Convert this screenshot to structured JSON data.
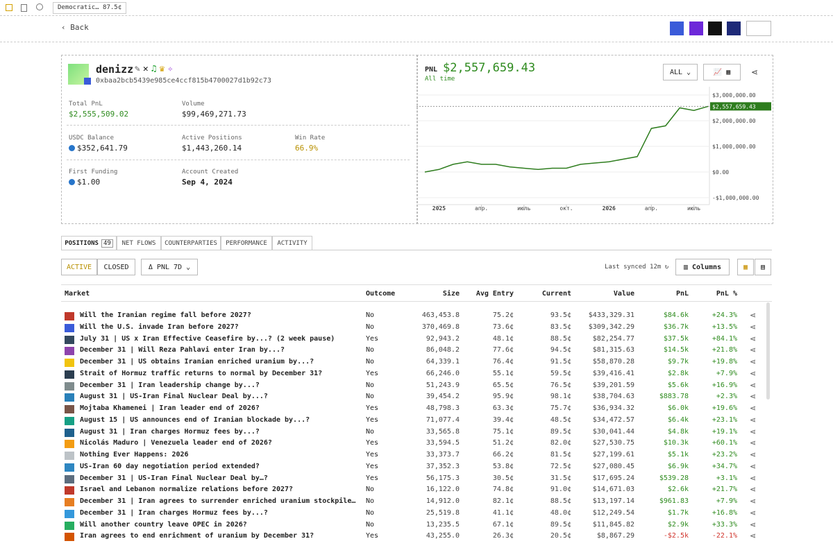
{
  "browser": {
    "tab": "Democratic… 87.5¢"
  },
  "nav": {
    "back": "Back"
  },
  "profile": {
    "name": "denizz",
    "address": "0xbaa2bcb5439e985ce4ccf815b4700027d1b92c73"
  },
  "stats": [
    {
      "label": "Total PnL",
      "value": "$2,555,509.02"
    },
    {
      "label": "Volume",
      "value": "$99,469,271.73"
    },
    {
      "label": "USDC Balance",
      "value": "$352,641.79"
    },
    {
      "label": "Active Positions",
      "value": "$1,443,260.14"
    },
    {
      "label": "Win Rate",
      "value": "66.9%"
    },
    {
      "label": "First Funding",
      "value": "$1.00"
    },
    {
      "label": "Account Created",
      "value": "Sep 4, 2024"
    }
  ],
  "pnl": {
    "label": "PNL",
    "value": "$2,557,659.43",
    "period": "All time",
    "range": "ALL"
  },
  "chart": {
    "type": "line",
    "color": "#2e7d1e",
    "categories": [
      null,
      "2025",
      null,
      null,
      "апр.",
      null,
      null,
      "июль",
      null,
      null,
      "окт.",
      null,
      null,
      "2026",
      null,
      null,
      "апр.",
      null,
      null,
      "июль",
      null
    ],
    "values": [
      0,
      100000,
      300000,
      400000,
      300000,
      300000,
      200000,
      150000,
      100000,
      150000,
      150000,
      300000,
      350000,
      400000,
      500000,
      600000,
      1700000,
      1800000,
      2500000,
      2400000,
      2557659.43
    ],
    "value_labels": [
      null,
      null,
      null,
      null,
      null,
      null,
      null,
      null,
      null,
      null,
      null,
      null,
      null,
      null,
      null,
      null,
      null,
      null,
      null,
      null,
      "$2,557,659.43"
    ],
    "ylim": [
      -1000000,
      3000000
    ],
    "yticks": [
      {
        "value": 3000000,
        "label": "$3,000,000.00"
      },
      {
        "value": 2000000,
        "label": "$2,000,000.00"
      },
      {
        "value": 1000000,
        "label": "$1,000,000.00"
      },
      {
        "value": 0,
        "label": "$0.00"
      },
      {
        "value": -1000000,
        "label": "-$1,000,000.00"
      }
    ],
    "grid": true
  },
  "tabs": [
    {
      "label": "POSITIONS",
      "count": "49"
    },
    {
      "label": "NET FLOWS"
    },
    {
      "label": "COUNTERPARTIES"
    },
    {
      "label": "PERFORMANCE"
    },
    {
      "label": "ACTIVITY"
    }
  ],
  "filters": {
    "active": "ACTIVE",
    "closed": "CLOSED",
    "sort": "Δ PNL 7D",
    "synced": "Last synced 12m",
    "columns": "Columns"
  },
  "table": {
    "headers": [
      "Market",
      "Outcome",
      "Size",
      "Avg Entry",
      "Current",
      "Value",
      "PnL",
      "PnL %"
    ],
    "rows": [
      [
        "Will the Iranian regime fall before 2027?",
        "No",
        "463,453.8",
        "75.2¢",
        "93.5¢",
        "$433,329.31",
        "$84.6k",
        "+24.3%"
      ],
      [
        "Will the U.S. invade Iran before 2027?",
        "No",
        "370,469.8",
        "73.6¢",
        "83.5¢",
        "$309,342.29",
        "$36.7k",
        "+13.5%"
      ],
      [
        "July 31 | US x Iran Effective Ceasefire by...? (2 week pause)",
        "Yes",
        "92,943.2",
        "48.1¢",
        "88.5¢",
        "$82,254.77",
        "$37.5k",
        "+84.1%"
      ],
      [
        "December 31 | Will Reza Pahlavi enter Iran by...?",
        "No",
        "86,048.2",
        "77.6¢",
        "94.5¢",
        "$81,315.63",
        "$14.5k",
        "+21.8%"
      ],
      [
        "December 31 | US obtains Iranian enriched uranium by...?",
        "No",
        "64,339.1",
        "76.4¢",
        "91.5¢",
        "$58,870.28",
        "$9.7k",
        "+19.8%"
      ],
      [
        "Strait of Hormuz traffic returns to normal by December 31?",
        "Yes",
        "66,246.0",
        "55.1¢",
        "59.5¢",
        "$39,416.41",
        "$2.8k",
        "+7.9%"
      ],
      [
        "December 31 | Iran leadership change by...?",
        "No",
        "51,243.9",
        "65.5¢",
        "76.5¢",
        "$39,201.59",
        "$5.6k",
        "+16.9%"
      ],
      [
        "August 31 | US-Iran Final Nuclear Deal by...?",
        "No",
        "39,454.2",
        "95.9¢",
        "98.1¢",
        "$38,704.63",
        "$883.78",
        "+2.3%"
      ],
      [
        "Mojtaba Khamenei | Iran leader end of 2026?",
        "Yes",
        "48,798.3",
        "63.3¢",
        "75.7¢",
        "$36,934.32",
        "$6.0k",
        "+19.6%"
      ],
      [
        "August 15 | US announces end of Iranian blockade by...?",
        "Yes",
        "71,077.4",
        "39.4¢",
        "48.5¢",
        "$34,472.57",
        "$6.4k",
        "+23.1%"
      ],
      [
        "August 31 | Iran charges Hormuz fees by...?",
        "No",
        "33,565.8",
        "75.1¢",
        "89.5¢",
        "$30,041.44",
        "$4.8k",
        "+19.1%"
      ],
      [
        "Nicolás Maduro | Venezuela leader end of 2026?",
        "Yes",
        "33,594.5",
        "51.2¢",
        "82.0¢",
        "$27,530.75",
        "$10.3k",
        "+60.1%"
      ],
      [
        "Nothing Ever Happens: 2026",
        "Yes",
        "33,373.7",
        "66.2¢",
        "81.5¢",
        "$27,199.61",
        "$5.1k",
        "+23.2%"
      ],
      [
        "US-Iran 60 day negotiation period extended?",
        "Yes",
        "37,352.3",
        "53.8¢",
        "72.5¢",
        "$27,080.45",
        "$6.9k",
        "+34.7%"
      ],
      [
        "December 31 | US-Iran Final Nuclear Deal by…?",
        "Yes",
        "56,175.3",
        "30.5¢",
        "31.5¢",
        "$17,695.24",
        "$539.28",
        "+3.1%"
      ],
      [
        "Israel and Lebanon normalize relations before 2027?",
        "No",
        "16,122.0",
        "74.8¢",
        "91.0¢",
        "$14,671.03",
        "$2.6k",
        "+21.7%"
      ],
      [
        "December 31 | Iran agrees to surrender enriched uranium stockpile…",
        "No",
        "14,912.0",
        "82.1¢",
        "88.5¢",
        "$13,197.14",
        "$961.83",
        "+7.9%"
      ],
      [
        "December 31 | Iran charges Hormuz fees by...?",
        "No",
        "25,519.8",
        "41.1¢",
        "48.0¢",
        "$12,249.54",
        "$1.7k",
        "+16.8%"
      ],
      [
        "Will another country leave OPEC in 2026?",
        "No",
        "13,235.5",
        "67.1¢",
        "89.5¢",
        "$11,845.82",
        "$2.9k",
        "+33.3%"
      ],
      [
        "Iran agrees to end enrichment of uranium by December 31?",
        "Yes",
        "43,255.0",
        "26.3¢",
        "20.5¢",
        "$8,867.29",
        "-$2.5k",
        "-22.1%"
      ]
    ]
  }
}
